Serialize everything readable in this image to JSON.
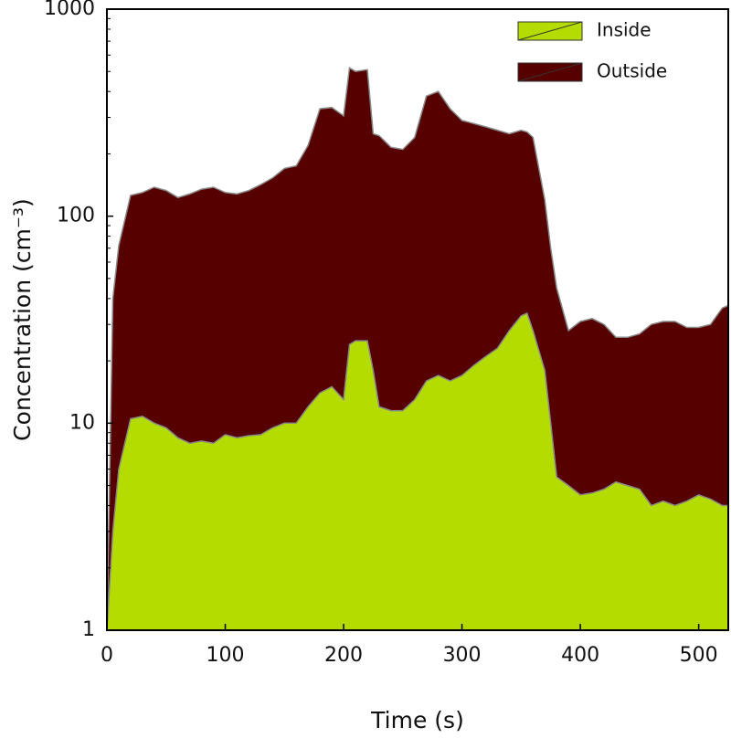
{
  "chart_data": {
    "type": "area",
    "xlabel": "Time (s)",
    "ylabel": "Concentration (cm⁻³)",
    "x": [
      0,
      5,
      10,
      20,
      30,
      40,
      50,
      60,
      70,
      80,
      90,
      100,
      110,
      120,
      130,
      140,
      150,
      160,
      170,
      180,
      190,
      200,
      205,
      210,
      220,
      225,
      230,
      240,
      250,
      260,
      270,
      280,
      290,
      300,
      310,
      320,
      330,
      340,
      350,
      355,
      360,
      370,
      375,
      380,
      390,
      400,
      410,
      420,
      430,
      440,
      450,
      460,
      470,
      480,
      490,
      500,
      510,
      520,
      525
    ],
    "series": [
      {
        "name": "Outside",
        "color": "#570000",
        "values": [
          1,
          40,
          72,
          126,
          130,
          138,
          133,
          123,
          128,
          135,
          138,
          130,
          128,
          133,
          142,
          153,
          170,
          175,
          220,
          330,
          335,
          305,
          520,
          500,
          510,
          250,
          245,
          215,
          210,
          240,
          380,
          400,
          330,
          290,
          280,
          270,
          260,
          250,
          260,
          255,
          240,
          120,
          70,
          45,
          28,
          31,
          32,
          30,
          26,
          26,
          27,
          30,
          31,
          31,
          29,
          29,
          30,
          36,
          37
        ]
      },
      {
        "name": "Inside",
        "color": "#b5dc00",
        "values": [
          1,
          3,
          6,
          10.5,
          10.8,
          10,
          9.5,
          8.5,
          8,
          8.2,
          8,
          8.8,
          8.5,
          8.7,
          8.8,
          9.5,
          10,
          10,
          12,
          14,
          15,
          13,
          24,
          25,
          25,
          18,
          12,
          11.5,
          11.5,
          13,
          16,
          17,
          16,
          17,
          19,
          21,
          23,
          28,
          33,
          34,
          28,
          18,
          10,
          5.5,
          5,
          4.5,
          4.6,
          4.8,
          5.2,
          5,
          4.8,
          4,
          4.2,
          4,
          4.2,
          4.5,
          4.3,
          4,
          4
        ]
      }
    ],
    "xlim": [
      0,
      525
    ],
    "xticks": [
      0,
      100,
      200,
      300,
      400,
      500
    ],
    "ylim": [
      1,
      1000
    ],
    "yticks": [
      1,
      10,
      100,
      1000
    ],
    "yscale": "log",
    "legend": "top-right"
  }
}
